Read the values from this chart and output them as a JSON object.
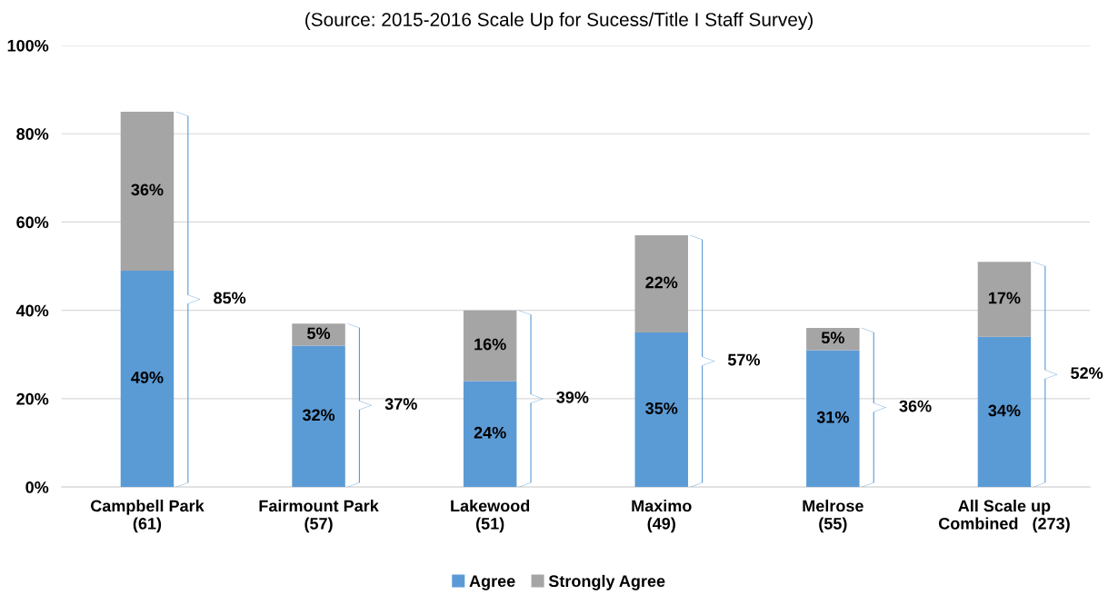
{
  "chart_data": {
    "type": "bar",
    "stacked": true,
    "subtitle": "(Source: 2015-2016 Scale Up for Sucess/Title I Staff Survey)",
    "categories": [
      "Campbell Park\n(61)",
      "Fairmount Park\n(57)",
      "Lakewood\n(51)",
      "Maximo\n(49)",
      "Melrose\n(55)",
      "All Scale up\nCombined   (273)"
    ],
    "series": [
      {
        "name": "Agree",
        "color": "#5b9bd5",
        "values": [
          49,
          32,
          24,
          35,
          31,
          34
        ],
        "value_labels": [
          "49%",
          "32%",
          "24%",
          "35%",
          "31%",
          "34%"
        ]
      },
      {
        "name": "Strongly Agree",
        "color": "#a5a5a5",
        "values": [
          36,
          5,
          16,
          22,
          5,
          17
        ],
        "value_labels": [
          "36%",
          "5%",
          "16%",
          "22%",
          "5%",
          "17%"
        ]
      }
    ],
    "ylim": [
      0,
      100
    ],
    "yticks": [
      {
        "value": 0,
        "label": "0%"
      },
      {
        "value": 20,
        "label": "20%"
      },
      {
        "value": 40,
        "label": "40%"
      },
      {
        "value": 60,
        "label": "60%"
      },
      {
        "value": 80,
        "label": "80%"
      },
      {
        "value": 100,
        "label": "100%"
      }
    ],
    "grid": "y",
    "legend": "bottom",
    "totals": [
      "85%",
      "37%",
      "39%",
      "57%",
      "36%",
      "52%"
    ]
  }
}
